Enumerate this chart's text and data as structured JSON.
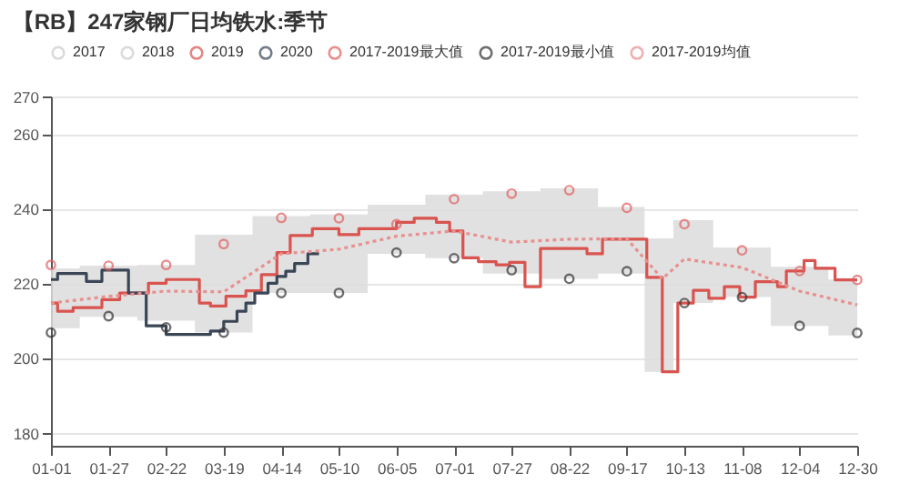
{
  "chart_data": {
    "type": "step",
    "title": "【RB】247家钢厂日均铁水:季节",
    "xlim": [
      "--01-01",
      "--12-30"
    ],
    "xticks": [
      {
        "value": "--01-01",
        "label": "01-01"
      },
      {
        "value": "--01-27",
        "label": "01-27"
      },
      {
        "value": "--02-22",
        "label": "02-22"
      },
      {
        "value": "--03-19",
        "label": "03-19"
      },
      {
        "value": "--04-14",
        "label": "04-14"
      },
      {
        "value": "--05-10",
        "label": "05-10"
      },
      {
        "value": "--06-05",
        "label": "06-05"
      },
      {
        "value": "--07-01",
        "label": "07-01"
      },
      {
        "value": "--07-27",
        "label": "07-27"
      },
      {
        "value": "--08-22",
        "label": "08-22"
      },
      {
        "value": "--09-17",
        "label": "09-17"
      },
      {
        "value": "--10-13",
        "label": "10-13"
      },
      {
        "value": "--11-08",
        "label": "11-08"
      },
      {
        "value": "--12-04",
        "label": "12-04"
      },
      {
        "value": "--12-30",
        "label": "12-30"
      }
    ],
    "ylim": [
      176.5,
      270
    ],
    "yticks": [
      180,
      200,
      220,
      240,
      260,
      270
    ],
    "grid": "y",
    "legend": "top",
    "series": [
      {
        "name": "2017",
        "color": "#cccccc",
        "type": "line"
      },
      {
        "name": "2018",
        "color": "#cccccc",
        "type": "line"
      },
      {
        "name": "2019",
        "color": "#d9534f",
        "type": "step",
        "x": [
          "--01-01",
          "--01-04",
          "--01-11",
          "--01-24",
          "--02-01",
          "--02-14",
          "--02-22",
          "--03-08",
          "--03-13",
          "--03-20",
          "--03-29",
          "--04-05",
          "--04-12",
          "--04-18",
          "--04-28",
          "--05-10",
          "--05-19",
          "--06-05",
          "--06-13",
          "--06-23",
          "--06-29",
          "--07-05",
          "--07-12",
          "--07-20",
          "--07-26",
          "--08-02",
          "--08-09",
          "--08-30",
          "--09-06",
          "--09-26",
          "--10-03",
          "--10-10",
          "--10-17",
          "--10-24",
          "--10-31",
          "--11-07",
          "--11-14",
          "--11-24",
          "--11-28",
          "--12-06",
          "--12-11",
          "--12-20",
          "--12-30"
        ],
        "values": [
          214.7,
          212.5,
          213.5,
          215.6,
          217.4,
          220,
          221,
          214.7,
          213.9,
          216.5,
          218,
          222.3,
          228.2,
          232.8,
          234.6,
          233,
          234.6,
          236.3,
          237.4,
          236.3,
          234,
          226.8,
          225.8,
          224.9,
          225.6,
          219.1,
          229.3,
          227.9,
          231.8,
          221.6,
          196.3,
          214.7,
          218.1,
          216,
          219.1,
          216.3,
          220.4,
          219.1,
          223.3,
          226.1,
          224,
          220.9,
          220.9
        ]
      },
      {
        "name": "2020",
        "color": "#3a4656",
        "type": "step",
        "x": [
          "--01-01",
          "--01-04",
          "--01-17",
          "--01-24",
          "--02-05",
          "--02-13",
          "--02-22",
          "--03-13",
          "--03-19",
          "--03-25",
          "--03-29",
          "--04-02",
          "--04-08",
          "--04-12",
          "--04-16",
          "--04-20",
          "--04-26",
          "--05-01"
        ],
        "values": [
          221,
          222.6,
          220.5,
          223.5,
          217.4,
          208.6,
          206.3,
          207.2,
          209.8,
          212.5,
          214.7,
          217.4,
          220,
          221.8,
          223.2,
          225.3,
          227.9,
          227.9
        ]
      },
      {
        "name": "2017-2019最大值",
        "color": "#e06060",
        "type": "scatter",
        "marker": "circle",
        "x": [
          "--01-01",
          "--01-27",
          "--02-22",
          "--03-19",
          "--04-14",
          "--05-10",
          "--06-05",
          "--07-01",
          "--07-27",
          "--08-22",
          "--09-17",
          "--10-13",
          "--11-08",
          "--12-04",
          "--12-30"
        ],
        "values": [
          224.9,
          224.7,
          224.9,
          230.5,
          237.5,
          237.4,
          235.8,
          242.5,
          244,
          244.9,
          240.2,
          235.8,
          228.8,
          223.3,
          220.9
        ]
      },
      {
        "name": "2017-2019最小值",
        "color": "#333333",
        "type": "scatter",
        "marker": "circle",
        "x": [
          "--01-01",
          "--01-27",
          "--02-22",
          "--03-19",
          "--04-14",
          "--05-10",
          "--06-05",
          "--07-01",
          "--07-27",
          "--08-22",
          "--09-17",
          "--10-13",
          "--11-08",
          "--12-04",
          "--12-30"
        ],
        "values": [
          206.8,
          211.2,
          208.2,
          206.8,
          217.4,
          217.4,
          228.2,
          226.7,
          223.5,
          221.2,
          223.2,
          214.7,
          216.3,
          208.6,
          206.7
        ]
      },
      {
        "name": "2017-2019均值",
        "color": "#e89090",
        "type": "line",
        "line_style": "dotted",
        "x": [
          "--01-01",
          "--01-27",
          "--02-22",
          "--03-19",
          "--04-14",
          "--05-10",
          "--06-05",
          "--07-01",
          "--07-27",
          "--08-22",
          "--09-17",
          "--10-03",
          "--10-13",
          "--11-08",
          "--12-04",
          "--12-30"
        ],
        "values": [
          214.7,
          216.5,
          217.9,
          217.7,
          227.9,
          229.1,
          232.6,
          234,
          231,
          231.8,
          231.9,
          221.2,
          226.5,
          224.2,
          217.9,
          214.2
        ],
        "lower": [
          208,
          211,
          210,
          206.8,
          217.4,
          217.4,
          227.9,
          226.7,
          222.6,
          221.2,
          222.6,
          196.3,
          214.7,
          216.3,
          208.6,
          206
        ],
        "upper": [
          224,
          224.7,
          224.9,
          233,
          238,
          238.4,
          241,
          243.7,
          244.6,
          245.4,
          240.4,
          232,
          236.9,
          229.6,
          224.4,
          221
        ]
      }
    ]
  }
}
